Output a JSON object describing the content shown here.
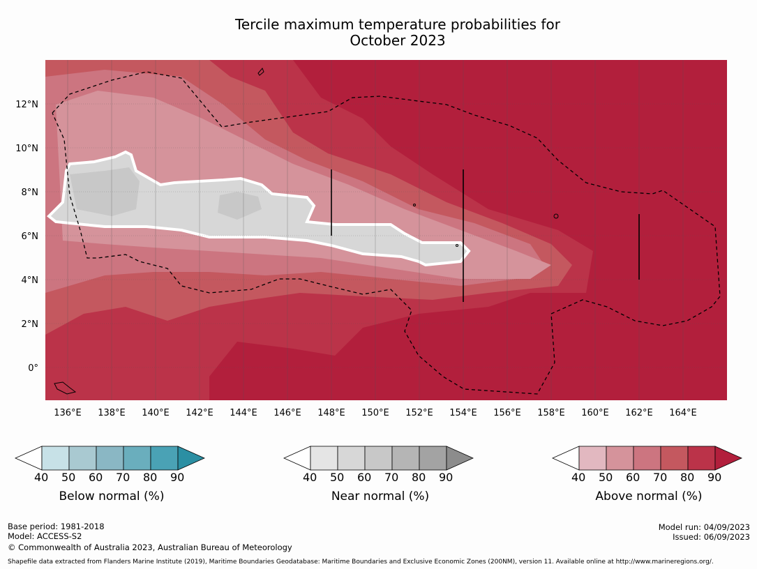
{
  "title": {
    "line1": "Tercile maximum temperature probabilities for",
    "line2": "October 2023"
  },
  "map": {
    "lon_range": [
      135,
      166
    ],
    "lat_range": [
      -1.5,
      14
    ],
    "lon_ticks": [
      "136°E",
      "138°E",
      "140°E",
      "142°E",
      "144°E",
      "146°E",
      "148°E",
      "150°E",
      "152°E",
      "154°E",
      "156°E",
      "158°E",
      "160°E",
      "162°E",
      "164°E"
    ],
    "lat_ticks": [
      "12°N",
      "10°N",
      "8°N",
      "6°N",
      "4°N",
      "2°N",
      "0°"
    ],
    "colors": {
      "above_max": "#b21f3c",
      "above_mid": "#c44d5e",
      "above_low": "#d5939b",
      "near": "#d7d7d7",
      "near_mid": "#c8c8c8"
    }
  },
  "colorbars": [
    {
      "name": "below",
      "label": "Below normal (%)",
      "ticks": [
        "40",
        "50",
        "60",
        "70",
        "80",
        "90"
      ],
      "colors": [
        "#c7e1e7",
        "#a9c9d1",
        "#8ab7c4",
        "#6aaebd",
        "#4aa2b5",
        "#2b8fa3"
      ]
    },
    {
      "name": "near",
      "label": "Near normal (%)",
      "ticks": [
        "40",
        "50",
        "60",
        "70",
        "80",
        "90"
      ],
      "colors": [
        "#e5e5e5",
        "#d7d7d7",
        "#c8c8c8",
        "#b5b5b5",
        "#a3a3a3",
        "#8c8c8c"
      ]
    },
    {
      "name": "above",
      "label": "Above normal (%)",
      "ticks": [
        "40",
        "50",
        "60",
        "70",
        "80",
        "90"
      ],
      "colors": [
        "#e2b8c0",
        "#d5939b",
        "#cc7580",
        "#c4585f",
        "#bb3349",
        "#b21f3c"
      ]
    }
  ],
  "footer": {
    "base_period": "Base period: 1981-2018",
    "model": "Model: ACCESS-S2",
    "copyright": "© Commonwealth of Australia 2023, Australian Bureau of Meteorology",
    "model_run": "Model run: 04/09/2023",
    "issued": "Issued: 06/09/2023",
    "shapefile": "Shapefile data extracted from Flanders Marine Institute (2019), Maritime Boundaries Geodatabase: Maritime Boundaries and Exclusive Economic Zones (200NM), version 11. Available online at http://www.marineregions.org/."
  }
}
